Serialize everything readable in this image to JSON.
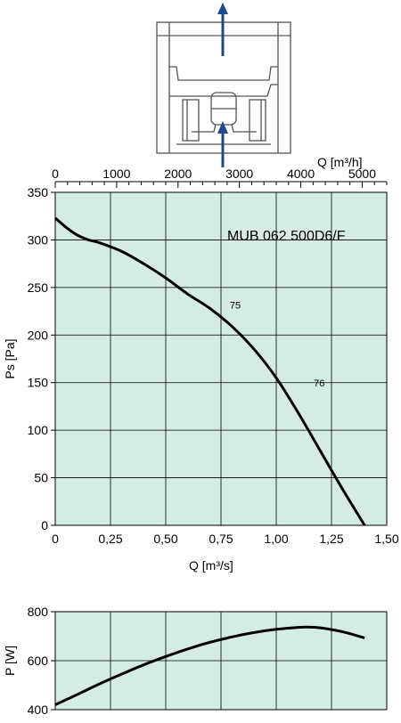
{
  "diagram": {
    "arrow_color": "#1c4a8c",
    "icons": [
      "airflow-up-arrow-icon",
      "airflow-in-arrow-icon"
    ]
  },
  "chart_data": [
    {
      "type": "line",
      "model_label": "MUB 062 500D6/F",
      "plot_background": "#d5ece6",
      "grid": true,
      "xlabel": "Q [m³/s]",
      "ylabel": "Ps [Pa]",
      "x_ticks": [
        "0",
        "0,25",
        "0,50",
        "0,75",
        "1,00",
        "1,25",
        "1,50"
      ],
      "xlim": [
        0,
        1.5
      ],
      "y_ticks": [
        "0",
        "50",
        "100",
        "150",
        "200",
        "250",
        "300",
        "350"
      ],
      "ylim": [
        0,
        350
      ],
      "top_axis": {
        "label": "Q [m³/h]",
        "ticks": [
          "0",
          "1000",
          "2000",
          "3000",
          "4000",
          "5000"
        ],
        "tick_values": [
          0,
          1000,
          2000,
          3000,
          4000,
          5000
        ],
        "lim": [
          0,
          5400
        ]
      },
      "series": [
        {
          "x": [
            0,
            0.05,
            0.1,
            0.15,
            0.2,
            0.3,
            0.4,
            0.5,
            0.6,
            0.7,
            0.8,
            0.9,
            1.0,
            1.1,
            1.2,
            1.3,
            1.4
          ],
          "y": [
            323,
            313,
            305,
            300,
            297,
            288,
            275,
            260,
            243,
            228,
            209,
            185,
            155,
            118,
            78,
            38,
            0
          ]
        }
      ],
      "annotations": [
        {
          "text": "75",
          "x": 0.79,
          "y": 228
        },
        {
          "text": "76",
          "x": 1.17,
          "y": 146
        }
      ]
    },
    {
      "type": "line",
      "plot_background": "#d5ece6",
      "grid": true,
      "ylabel": "P [W]",
      "y_ticks": [
        "400",
        "600",
        "800"
      ],
      "ylim": [
        400,
        800
      ],
      "xlim": [
        0,
        1.5
      ],
      "series": [
        {
          "x": [
            0,
            0.1,
            0.2,
            0.3,
            0.4,
            0.5,
            0.6,
            0.7,
            0.8,
            0.9,
            1.0,
            1.1,
            1.15,
            1.2,
            1.3,
            1.4
          ],
          "y": [
            420,
            462,
            505,
            545,
            583,
            617,
            648,
            675,
            697,
            715,
            728,
            736,
            737,
            734,
            718,
            693
          ]
        }
      ]
    }
  ]
}
